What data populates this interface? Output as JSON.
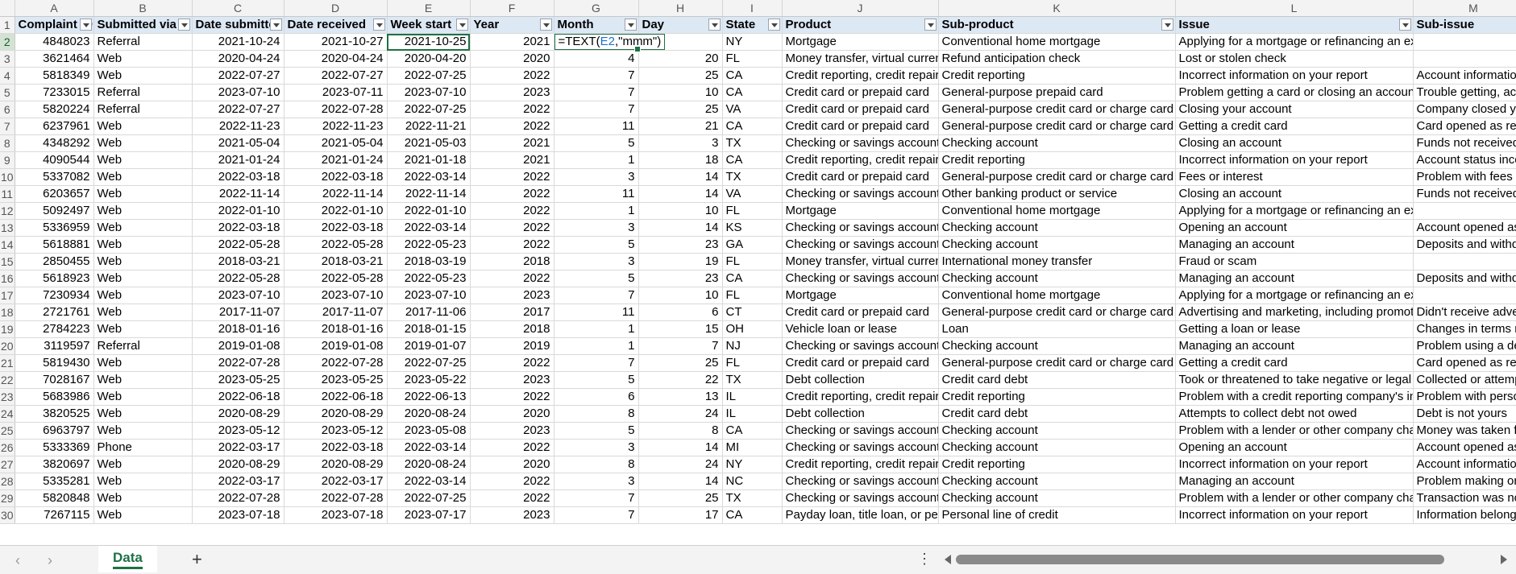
{
  "columns": [
    "A",
    "B",
    "C",
    "D",
    "E",
    "F",
    "G",
    "H",
    "I",
    "J",
    "K",
    "L",
    "M"
  ],
  "selected_column": "G",
  "selected_row": 2,
  "headers": [
    "Complaint ID",
    "Submitted via",
    "Date submitted",
    "Date received",
    "Week start",
    "Year",
    "Month",
    "Day",
    "State",
    "Product",
    "Sub-product",
    "Issue",
    "Sub-issue"
  ],
  "header_row_label": "1",
  "editor": {
    "pre": "=TEXT(",
    "ref": "E2",
    "post": ",\"mmm\")"
  },
  "rows": [
    {
      "n": "2",
      "c": [
        "4848023",
        "Referral",
        "2021-10-24",
        "2021-10-27",
        "2021-10-25",
        "2021",
        "",
        "",
        "NY",
        "Mortgage",
        "Conventional home mortgage",
        "Applying for a mortgage or refinancing an existing mortgage",
        ""
      ]
    },
    {
      "n": "3",
      "c": [
        "3621464",
        "Web",
        "2020-04-24",
        "2020-04-24",
        "2020-04-20",
        "2020",
        "4",
        "20",
        "FL",
        "Money transfer, virtual currency, or money service",
        "Refund anticipation check",
        "Lost or stolen check",
        ""
      ]
    },
    {
      "n": "4",
      "c": [
        "5818349",
        "Web",
        "2022-07-27",
        "2022-07-27",
        "2022-07-25",
        "2022",
        "7",
        "25",
        "CA",
        "Credit reporting, credit repair services, or other personal consumer reports",
        "Credit reporting",
        "Incorrect information on your report",
        "Account information incorrect"
      ]
    },
    {
      "n": "5",
      "c": [
        "7233015",
        "Referral",
        "2023-07-10",
        "2023-07-11",
        "2023-07-10",
        "2023",
        "7",
        "10",
        "CA",
        "Credit card or prepaid card",
        "General-purpose prepaid card",
        "Problem getting a card or closing an account",
        "Trouble getting, activating, or registering a card"
      ]
    },
    {
      "n": "6",
      "c": [
        "5820224",
        "Referral",
        "2022-07-27",
        "2022-07-28",
        "2022-07-25",
        "2022",
        "7",
        "25",
        "VA",
        "Credit card or prepaid card",
        "General-purpose credit card or charge card",
        "Closing your account",
        "Company closed your account"
      ]
    },
    {
      "n": "7",
      "c": [
        "6237961",
        "Web",
        "2022-11-23",
        "2022-11-23",
        "2022-11-21",
        "2022",
        "11",
        "21",
        "CA",
        "Credit card or prepaid card",
        "General-purpose credit card or charge card",
        "Getting a credit card",
        "Card opened as result of identity theft or fraud"
      ]
    },
    {
      "n": "8",
      "c": [
        "4348292",
        "Web",
        "2021-05-04",
        "2021-05-04",
        "2021-05-03",
        "2021",
        "5",
        "3",
        "TX",
        "Checking or savings account",
        "Checking account",
        "Closing an account",
        "Funds not received from closed account"
      ]
    },
    {
      "n": "9",
      "c": [
        "4090544",
        "Web",
        "2021-01-24",
        "2021-01-24",
        "2021-01-18",
        "2021",
        "1",
        "18",
        "CA",
        "Credit reporting, credit repair services, or other personal consumer reports",
        "Credit reporting",
        "Incorrect information on your report",
        "Account status incorrect"
      ]
    },
    {
      "n": "10",
      "c": [
        "5337082",
        "Web",
        "2022-03-18",
        "2022-03-18",
        "2022-03-14",
        "2022",
        "3",
        "14",
        "TX",
        "Credit card or prepaid card",
        "General-purpose credit card or charge card",
        "Fees or interest",
        "Problem with fees"
      ]
    },
    {
      "n": "11",
      "c": [
        "6203657",
        "Web",
        "2022-11-14",
        "2022-11-14",
        "2022-11-14",
        "2022",
        "11",
        "14",
        "VA",
        "Checking or savings account",
        "Other banking product or service",
        "Closing an account",
        "Funds not received from closed account"
      ]
    },
    {
      "n": "12",
      "c": [
        "5092497",
        "Web",
        "2022-01-10",
        "2022-01-10",
        "2022-01-10",
        "2022",
        "1",
        "10",
        "FL",
        "Mortgage",
        "Conventional home mortgage",
        "Applying for a mortgage or refinancing an existing mortgage",
        ""
      ]
    },
    {
      "n": "13",
      "c": [
        "5336959",
        "Web",
        "2022-03-18",
        "2022-03-18",
        "2022-03-14",
        "2022",
        "3",
        "14",
        "KS",
        "Checking or savings account",
        "Checking account",
        "Opening an account",
        "Account opened as a result of fraud"
      ]
    },
    {
      "n": "14",
      "c": [
        "5618881",
        "Web",
        "2022-05-28",
        "2022-05-28",
        "2022-05-23",
        "2022",
        "5",
        "23",
        "GA",
        "Checking or savings account",
        "Checking account",
        "Managing an account",
        "Deposits and withdrawals"
      ]
    },
    {
      "n": "15",
      "c": [
        "2850455",
        "Web",
        "2018-03-21",
        "2018-03-21",
        "2018-03-19",
        "2018",
        "3",
        "19",
        "FL",
        "Money transfer, virtual currency, or money service",
        "International money transfer",
        "Fraud or scam",
        ""
      ]
    },
    {
      "n": "16",
      "c": [
        "5618923",
        "Web",
        "2022-05-28",
        "2022-05-28",
        "2022-05-23",
        "2022",
        "5",
        "23",
        "CA",
        "Checking or savings account",
        "Checking account",
        "Managing an account",
        "Deposits and withdrawals"
      ]
    },
    {
      "n": "17",
      "c": [
        "7230934",
        "Web",
        "2023-07-10",
        "2023-07-10",
        "2023-07-10",
        "2023",
        "7",
        "10",
        "FL",
        "Mortgage",
        "Conventional home mortgage",
        "Applying for a mortgage or refinancing an existing mortgage",
        ""
      ]
    },
    {
      "n": "18",
      "c": [
        "2721761",
        "Web",
        "2017-11-07",
        "2017-11-07",
        "2017-11-06",
        "2017",
        "11",
        "6",
        "CT",
        "Credit card or prepaid card",
        "General-purpose credit card or charge card",
        "Advertising and marketing, including promotional offers",
        "Didn't receive advertised or promotional terms"
      ]
    },
    {
      "n": "19",
      "c": [
        "2784223",
        "Web",
        "2018-01-16",
        "2018-01-16",
        "2018-01-15",
        "2018",
        "1",
        "15",
        "OH",
        "Vehicle loan or lease",
        "Loan",
        "Getting a loan or lease",
        "Changes in terms mid-deal or after closing"
      ]
    },
    {
      "n": "20",
      "c": [
        "3119597",
        "Referral",
        "2019-01-08",
        "2019-01-08",
        "2019-01-07",
        "2019",
        "1",
        "7",
        "NJ",
        "Checking or savings account",
        "Checking account",
        "Managing an account",
        "Problem using a debit or ATM card"
      ]
    },
    {
      "n": "21",
      "c": [
        "5819430",
        "Web",
        "2022-07-28",
        "2022-07-28",
        "2022-07-25",
        "2022",
        "7",
        "25",
        "FL",
        "Credit card or prepaid card",
        "General-purpose credit card or charge card",
        "Getting a credit card",
        "Card opened as result of identity theft or fraud"
      ]
    },
    {
      "n": "22",
      "c": [
        "7028167",
        "Web",
        "2023-05-25",
        "2023-05-25",
        "2023-05-22",
        "2023",
        "5",
        "22",
        "TX",
        "Debt collection",
        "Credit card debt",
        "Took or threatened to take negative or legal action",
        "Collected or attempted to collect exempt funds"
      ]
    },
    {
      "n": "23",
      "c": [
        "5683986",
        "Web",
        "2022-06-18",
        "2022-06-18",
        "2022-06-13",
        "2022",
        "6",
        "13",
        "IL",
        "Credit reporting, credit repair services, or other personal consumer reports",
        "Credit reporting",
        "Problem with a credit reporting company's investigation into an existing problem",
        "Problem with personal statement of dispute"
      ]
    },
    {
      "n": "24",
      "c": [
        "3820525",
        "Web",
        "2020-08-29",
        "2020-08-29",
        "2020-08-24",
        "2020",
        "8",
        "24",
        "IL",
        "Debt collection",
        "Credit card debt",
        "Attempts to collect debt not owed",
        "Debt is not yours"
      ]
    },
    {
      "n": "25",
      "c": [
        "6963797",
        "Web",
        "2023-05-12",
        "2023-05-12",
        "2023-05-08",
        "2023",
        "5",
        "8",
        "CA",
        "Checking or savings account",
        "Checking account",
        "Problem with a lender or other company charging your account",
        "Money was taken from your account"
      ]
    },
    {
      "n": "26",
      "c": [
        "5333369",
        "Phone",
        "2022-03-17",
        "2022-03-18",
        "2022-03-14",
        "2022",
        "3",
        "14",
        "MI",
        "Checking or savings account",
        "Checking account",
        "Opening an account",
        "Account opened as a result of fraud"
      ]
    },
    {
      "n": "27",
      "c": [
        "3820697",
        "Web",
        "2020-08-29",
        "2020-08-29",
        "2020-08-24",
        "2020",
        "8",
        "24",
        "NY",
        "Credit reporting, credit repair services, or other personal consumer reports",
        "Credit reporting",
        "Incorrect information on your report",
        "Account information incorrect"
      ]
    },
    {
      "n": "28",
      "c": [
        "5335281",
        "Web",
        "2022-03-17",
        "2022-03-17",
        "2022-03-14",
        "2022",
        "3",
        "14",
        "NC",
        "Checking or savings account",
        "Checking account",
        "Managing an account",
        "Problem making or receiving payments"
      ]
    },
    {
      "n": "29",
      "c": [
        "5820848",
        "Web",
        "2022-07-28",
        "2022-07-28",
        "2022-07-25",
        "2022",
        "7",
        "25",
        "TX",
        "Checking or savings account",
        "Checking account",
        "Problem with a lender or other company charging your account",
        "Transaction was not authorized"
      ]
    },
    {
      "n": "30",
      "c": [
        "7267115",
        "Web",
        "2023-07-18",
        "2023-07-18",
        "2023-07-17",
        "2023",
        "7",
        "17",
        "CA",
        "Payday loan, title loan, or personal loan",
        "Personal line of credit",
        "Incorrect information on your report",
        "Information belongs to someone else"
      ]
    }
  ],
  "sheet_tab": "Data",
  "icons": {
    "prev": "chevron-left-icon",
    "next": "chevron-right-icon",
    "add": "plus-icon",
    "more": "kebab-icon"
  },
  "colors": {
    "accent": "#1e7145",
    "header_fill": "#dde8f5",
    "ref": "#1f6fd1"
  }
}
